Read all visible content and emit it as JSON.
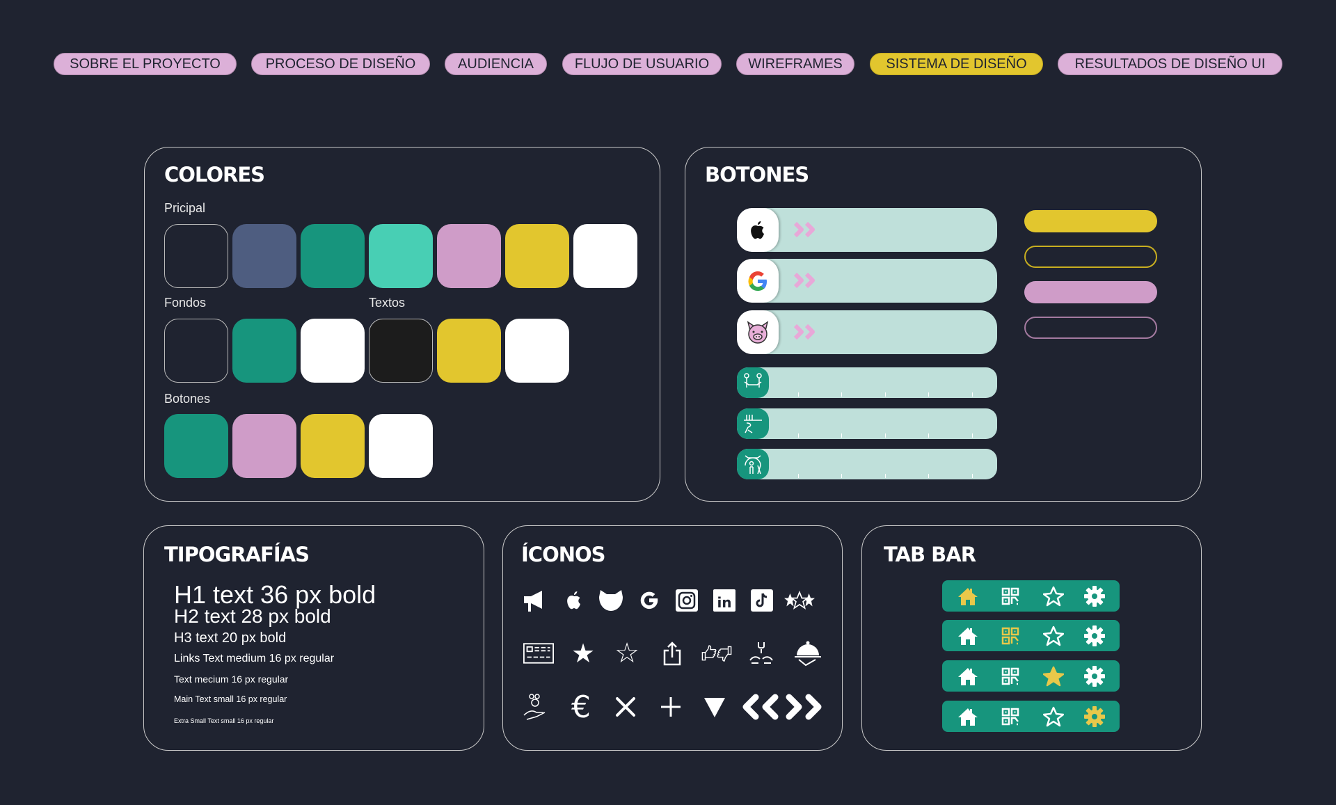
{
  "nav": {
    "active_index": 5,
    "items": [
      "SOBRE EL PROYECTO",
      "PROCESO DE DISEÑO",
      "AUDIENCIA",
      "FLUJO DE USUARIO",
      "WIREFRAMES",
      "SISTEMA DE DISEÑO",
      "RESULTADOS DE DISEÑO UI"
    ]
  },
  "colores": {
    "title": "COLORES",
    "principal_label": "Pricipal",
    "principal": [
      "#1f2330",
      "#4e5d80",
      "#17957d",
      "#48cfb4",
      "#cf9cc8",
      "#e2c62e",
      "#ffffff"
    ],
    "fondos_label": "Fondos",
    "fondos": [
      "#1f2330",
      "#17957d",
      "#ffffff"
    ],
    "textos_label": "Textos",
    "textos": [
      "#1c1c1c",
      "#e2c62e",
      "#ffffff"
    ],
    "botones_label": "Botones",
    "botones": [
      "#17957d",
      "#cf9cc8",
      "#e2c62e",
      "#ffffff"
    ]
  },
  "botones": {
    "title": "BOTONES",
    "login_buttons": [
      {
        "icon": "apple-icon"
      },
      {
        "icon": "google-icon"
      },
      {
        "icon": "pig-icon"
      }
    ],
    "option_bars": [
      {
        "icon": "people-table-icon"
      },
      {
        "icon": "cooking-icon"
      },
      {
        "icon": "person-arch-icon"
      }
    ],
    "right_buttons": [
      {
        "style": "filled",
        "color": "#e2c62e"
      },
      {
        "style": "outline",
        "color": "#c8ae20"
      },
      {
        "style": "filled",
        "color": "#cf9cc8"
      },
      {
        "style": "outline",
        "color": "#a47aa0"
      }
    ]
  },
  "tipografias": {
    "title": "TIPOGRAFÍAS",
    "samples": [
      "H1 text 36 px bold",
      "H2 text 28 px bold",
      "H3 text 20 px bold",
      "Links Text medium 16 px regular",
      "Text mecium 16 px regular",
      "Main Text small 16 px regular",
      "Extra Small Text small 16 px regular"
    ]
  },
  "iconos": {
    "title": "ÍCONOS",
    "rows": [
      [
        "megaphone-icon",
        "apple-icon",
        "pig-head-icon",
        "google-icon",
        "instagram-icon",
        "linkedin-icon",
        "tiktok-icon",
        "three-stars-icon"
      ],
      [
        "id-card-icon",
        "star-filled-icon",
        "star-outline-icon",
        "share-icon",
        "thumbs-up-down-icon",
        "hands-group-icon",
        "cloche-icon"
      ],
      [
        "coins-hand-icon",
        "euro-icon",
        "close-icon",
        "plus-icon",
        "triangle-down-icon",
        "chevrons-icon"
      ]
    ]
  },
  "tabbar": {
    "title": "TAB BAR",
    "icons": [
      "home-icon",
      "qr-icon",
      "star-icon",
      "gear-icon"
    ],
    "active_per_bar": [
      0,
      1,
      2,
      3
    ],
    "active_color": "#e8c84a"
  }
}
